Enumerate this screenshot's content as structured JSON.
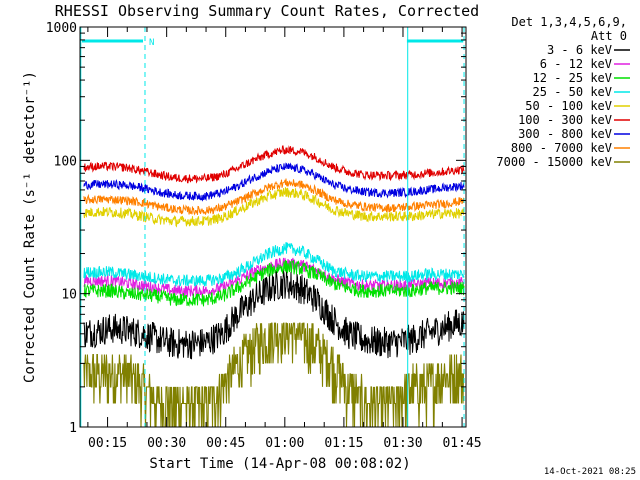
{
  "chart_data": {
    "type": "line",
    "title": "RHESSI Observing Summary Count Rates, Corrected",
    "xlabel": "Start Time (14-Apr-08 00:08:02)",
    "ylabel": "Corrected Count Rate (s⁻¹ detector⁻¹)",
    "yscale": "log",
    "ylim": [
      1,
      1000
    ],
    "xlim_minutes": [
      8,
      106
    ],
    "y_ticks": [
      {
        "value": 1,
        "label": "1"
      },
      {
        "value": 10,
        "label": "10"
      },
      {
        "value": 100,
        "label": "100"
      },
      {
        "value": 1000,
        "label": "1000"
      }
    ],
    "x_ticks": [
      {
        "minute": 15,
        "label": "00:15"
      },
      {
        "minute": 30,
        "label": "00:30"
      },
      {
        "minute": 45,
        "label": "00:45"
      },
      {
        "minute": 60,
        "label": "01:00"
      },
      {
        "minute": 75,
        "label": "01:15"
      },
      {
        "minute": 90,
        "label": "01:30"
      },
      {
        "minute": 105,
        "label": "01:45"
      }
    ],
    "legend_header": [
      "Det 1,3,4,5,6,9,",
      "Att 0"
    ],
    "legend_position": "right",
    "time_minutes": [
      8,
      12,
      16,
      20,
      24,
      28,
      32,
      36,
      40,
      44,
      48,
      52,
      56,
      60,
      64,
      68,
      72,
      76,
      80,
      84,
      88,
      92,
      96,
      100,
      104,
      106
    ],
    "series": [
      {
        "name": "3 - 6 keV",
        "color": "#000000",
        "noise": 0.09,
        "values": [
          5,
          5.2,
          5.5,
          5.3,
          5,
          4.5,
          4.2,
          4.2,
          4.3,
          5,
          7,
          9,
          11,
          12,
          11,
          9,
          6.5,
          5,
          4.5,
          4.3,
          4.3,
          4.5,
          5,
          5.5,
          6,
          6
        ]
      },
      {
        "name": "6 - 12 keV",
        "color": "#e020e0",
        "noise": 0.035,
        "values": [
          12.5,
          12.5,
          12.5,
          12,
          11.5,
          11,
          10.5,
          10.5,
          10.5,
          11,
          12.5,
          14.5,
          16,
          17,
          16.5,
          15,
          13,
          12,
          11.5,
          11.5,
          11.5,
          11.5,
          12,
          12,
          12,
          12
        ]
      },
      {
        "name": "12 - 25 keV",
        "color": "#00e000",
        "noise": 0.04,
        "values": [
          10.5,
          10.5,
          10.5,
          10,
          9.8,
          9.5,
          9,
          9,
          9,
          9.5,
          11,
          13,
          15,
          16,
          15.5,
          14,
          12,
          11,
          10.5,
          10.5,
          10.5,
          10.5,
          11,
          11,
          11,
          11
        ]
      },
      {
        "name": "25 - 50 keV",
        "color": "#00e8e8",
        "noise": 0.035,
        "values": [
          14.5,
          14.5,
          14.5,
          14,
          13.5,
          13,
          12.5,
          12.5,
          12.5,
          13,
          14.5,
          17,
          20,
          22,
          21,
          18,
          15,
          14,
          13.5,
          13.5,
          13.5,
          13.5,
          14,
          14,
          14,
          14
        ]
      },
      {
        "name": "50 - 100 keV",
        "color": "#e0d000",
        "noise": 0.03,
        "values": [
          40,
          41,
          41,
          40,
          38,
          36,
          35,
          35,
          35,
          37,
          42,
          48,
          54,
          58,
          56,
          50,
          43,
          40,
          38,
          38,
          38,
          38,
          39,
          40,
          40,
          40
        ]
      },
      {
        "name": "100 - 300 keV",
        "color": "#e00000",
        "noise": 0.025,
        "values": [
          88,
          90,
          90,
          88,
          83,
          78,
          74,
          73,
          73,
          77,
          87,
          100,
          112,
          120,
          117,
          105,
          90,
          82,
          78,
          77,
          77,
          78,
          80,
          82,
          85,
          86
        ]
      },
      {
        "name": "300 - 800 keV",
        "color": "#0000e0",
        "noise": 0.025,
        "values": [
          65,
          66,
          66,
          65,
          62,
          58,
          55,
          54,
          54,
          57,
          64,
          74,
          83,
          89,
          86,
          77,
          66,
          61,
          58,
          57,
          57,
          58,
          60,
          62,
          64,
          65
        ]
      },
      {
        "name": "800 - 7000 keV",
        "color": "#ff8000",
        "noise": 0.025,
        "values": [
          50,
          51,
          51,
          50,
          48,
          45,
          43,
          42,
          42,
          44,
          49,
          56,
          63,
          68,
          66,
          59,
          51,
          47,
          45,
          44,
          44,
          45,
          46,
          47,
          49,
          50
        ]
      },
      {
        "name": "7000 - 15000 keV",
        "color": "#808000",
        "noise": 0,
        "values": [
          2.5,
          2.5,
          2.5,
          2.5,
          2,
          1.5,
          1.5,
          1.5,
          1.5,
          2,
          3,
          4,
          5,
          5.5,
          5,
          4,
          3,
          2,
          1.5,
          1.5,
          1.5,
          2,
          2,
          2.5,
          2.5,
          2.5
        ]
      }
    ],
    "annotations": {
      "night_marker_label": "N",
      "footer_date": "14-Oct-2021 08:25"
    }
  }
}
